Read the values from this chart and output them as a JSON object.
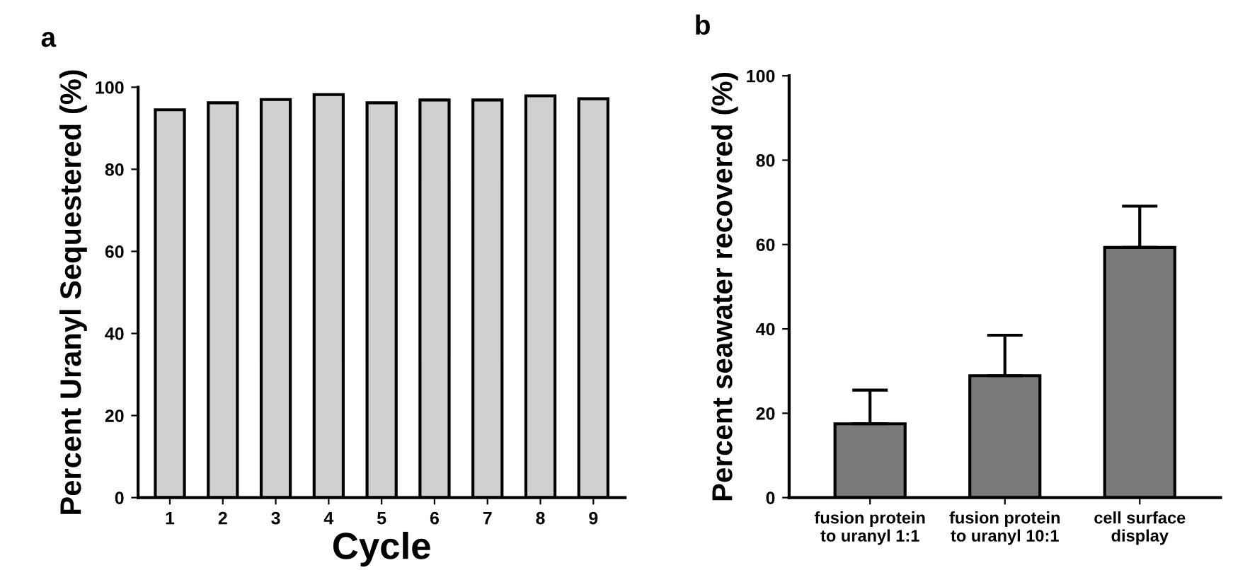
{
  "chart_data": [
    {
      "type": "bar",
      "title": "a",
      "xlabel": "Cycle",
      "ylabel": "Percent Uranyl Sequestered (%)",
      "categories": [
        "1",
        "2",
        "3",
        "4",
        "5",
        "6",
        "7",
        "8",
        "9"
      ],
      "values": [
        94.5,
        96.2,
        97.0,
        98.2,
        96.2,
        96.9,
        96.9,
        97.9,
        97.2
      ],
      "color": "#d0d0d0",
      "ylim": [
        0,
        100
      ],
      "yticks": [
        0,
        20,
        40,
        60,
        80,
        100
      ],
      "grid": false,
      "legend": false
    },
    {
      "type": "bar",
      "title": "b",
      "ylabel": "Percent seawater recovered (%)",
      "categories": [
        "fusion protein\nto uranyl 1:1",
        "fusion protein\nto uranyl 10:1",
        "cell surface\ndisplay"
      ],
      "values": [
        17.5,
        28.9,
        59.3
      ],
      "errors": [
        [
          17.5,
          25.5
        ],
        [
          28.9,
          38.5
        ],
        [
          59.3,
          69.1
        ]
      ],
      "color": "#7a7a7a",
      "ylim": [
        0,
        100
      ],
      "yticks": [
        0,
        20,
        40,
        60,
        80,
        100
      ],
      "grid": false,
      "legend": false
    }
  ]
}
